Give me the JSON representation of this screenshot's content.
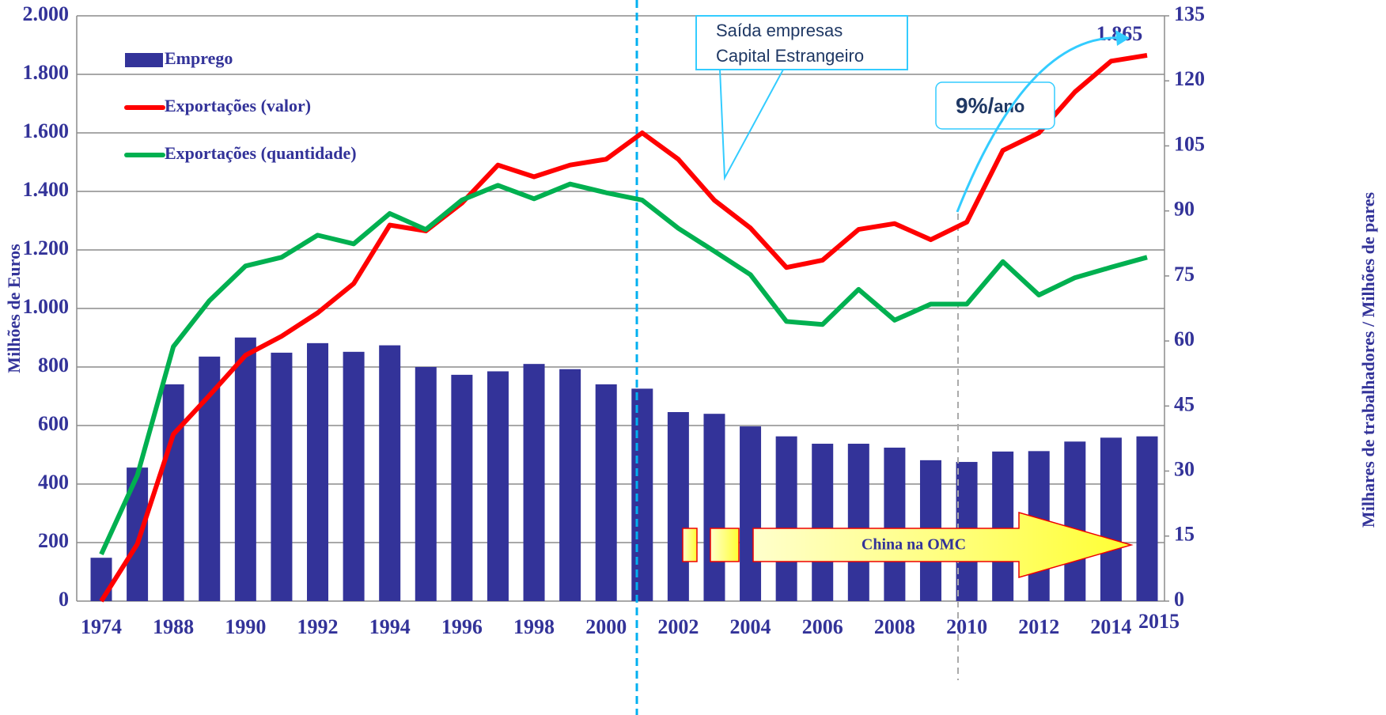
{
  "chart_data": {
    "type": "combo",
    "categories": [
      "1974",
      null,
      "1988",
      null,
      "1990",
      null,
      "1992",
      null,
      "1994",
      null,
      "1996",
      null,
      "1998",
      null,
      "2000",
      null,
      "2002",
      null,
      "2004",
      null,
      "2006",
      null,
      "2008",
      null,
      "2010",
      null,
      "2012",
      null,
      "2014",
      "2015"
    ],
    "series": [
      {
        "name": "Emprego",
        "type": "bar",
        "axis": "y2",
        "color": "#333399",
        "values": [
          10,
          30.8,
          50,
          56.4,
          60.8,
          57.3,
          59.5,
          57.5,
          59,
          54,
          52.2,
          53,
          54.7,
          53.5,
          50,
          49,
          43.6,
          43.2,
          40.3,
          38,
          36.3,
          36.3,
          35.4,
          32.5,
          32.1,
          34.5,
          34.6,
          36.8,
          37.7,
          38
        ]
      },
      {
        "name": "Exportações (valor)",
        "type": "line",
        "axis": "y",
        "color": "#ff0000",
        "values": [
          0,
          195,
          570,
          703,
          840,
          905,
          985,
          1085,
          1285,
          1265,
          1360,
          1490,
          1450,
          1490,
          1510,
          1600,
          1510,
          1370,
          1275,
          1140,
          1165,
          1270,
          1290,
          1235,
          1295,
          1540,
          1600,
          1740,
          1845,
          1865
        ],
        "value_labels": [
          null,
          null,
          null,
          null,
          null,
          null,
          null,
          null,
          null,
          null,
          null,
          null,
          null,
          null,
          null,
          null,
          null,
          null,
          null,
          null,
          null,
          null,
          null,
          null,
          null,
          null,
          null,
          null,
          null,
          "1.865"
        ]
      },
      {
        "name": "Exportações (quantidade)",
        "type": "line",
        "axis": "y2",
        "color": "#00b050",
        "values": [
          10.8,
          29,
          58.7,
          69.3,
          77.3,
          79.3,
          84.4,
          82.4,
          89.4,
          85.7,
          92.5,
          95.9,
          92.8,
          96.2,
          94.2,
          92.5,
          86,
          80.7,
          75.3,
          64.5,
          63.8,
          71.9,
          64.8,
          68.5,
          68.5,
          78.3,
          70.6,
          74.6,
          77,
          79.3
        ]
      }
    ],
    "ylabel": "Milhões de Euros",
    "y2label": "Milhares de trabalhadores / Milhões de pares",
    "ylim": [
      0,
      2000
    ],
    "yticks": [
      0,
      200,
      400,
      600,
      800,
      {
        "value": 1000,
        "label": "1.000"
      },
      {
        "value": 1200,
        "label": "1.200"
      },
      {
        "value": 1400,
        "label": "1.400"
      },
      {
        "value": 1600,
        "label": "1.600"
      },
      {
        "value": 1800,
        "label": "1.800"
      },
      {
        "value": 2000,
        "label": "2.000"
      }
    ],
    "y2lim": [
      0,
      135
    ],
    "y2ticks": [
      0,
      15,
      30,
      45,
      60,
      75,
      90,
      105,
      120,
      135
    ],
    "grid": true,
    "legend": "upper left",
    "annotations": [
      "Saída empresas",
      "Capital Estrangeiro",
      "9%/",
      "ano",
      "China na OMC"
    ]
  }
}
